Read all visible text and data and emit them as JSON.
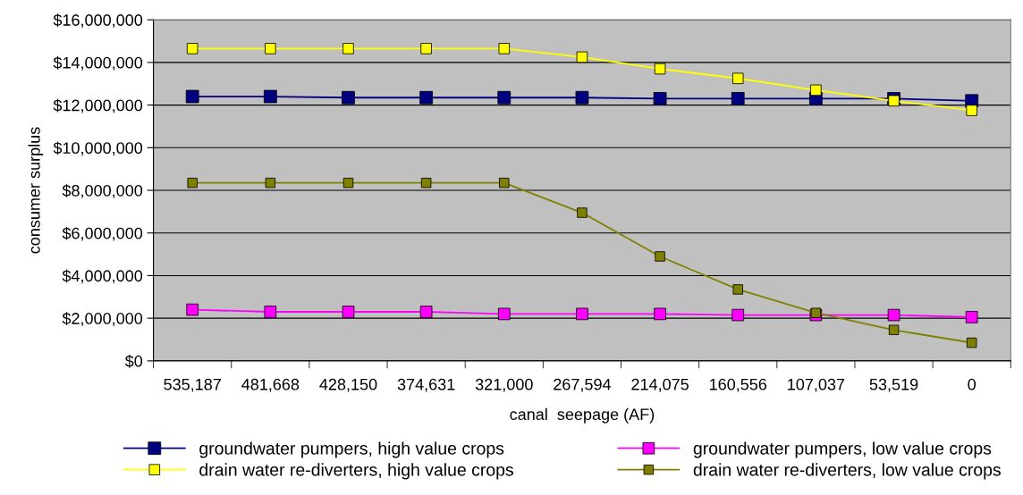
{
  "chart_data": {
    "type": "line",
    "xlabel": "canal  seepage (AF)",
    "ylabel": "consumer surplus",
    "categories": [
      "535,187",
      "481,668",
      "428,150",
      "374,631",
      "321,000",
      "267,594",
      "214,075",
      "160,556",
      "107,037",
      "53,519",
      "0"
    ],
    "ylim": [
      0,
      16000000
    ],
    "yticks": [
      {
        "value": 0,
        "label": "$0"
      },
      {
        "value": 2000000,
        "label": "$2,000,000"
      },
      {
        "value": 4000000,
        "label": "$4,000,000"
      },
      {
        "value": 6000000,
        "label": "$6,000,000"
      },
      {
        "value": 8000000,
        "label": "$8,000,000"
      },
      {
        "value": 10000000,
        "label": "$10,000,000"
      },
      {
        "value": 12000000,
        "label": "$12,000,000"
      },
      {
        "value": 14000000,
        "label": "$14,000,000"
      },
      {
        "value": 16000000,
        "label": "$16,000,000"
      }
    ],
    "grid": "y",
    "legend": "bottom",
    "marker": "square",
    "line_style": "solid",
    "series": [
      {
        "name": "groundwater pumpers, high value crops",
        "color": "#000080",
        "values": [
          12400000,
          12400000,
          12350000,
          12350000,
          12350000,
          12350000,
          12300000,
          12300000,
          12300000,
          12300000,
          12200000
        ]
      },
      {
        "name": "groundwater pumpers, low value crops",
        "color": "#ff00ff",
        "values": [
          2400000,
          2300000,
          2300000,
          2300000,
          2200000,
          2200000,
          2200000,
          2150000,
          2150000,
          2150000,
          2050000
        ]
      },
      {
        "name": "drain water re-diverters, high value crops",
        "color": "#ffff00",
        "values": [
          14650000,
          14650000,
          14650000,
          14650000,
          14650000,
          14250000,
          13700000,
          13250000,
          12700000,
          12200000,
          11750000
        ]
      },
      {
        "name": "drain water re-diverters, low value crops",
        "color": "#808000",
        "values": [
          8350000,
          8350000,
          8350000,
          8350000,
          8350000,
          6950000,
          4900000,
          3350000,
          2250000,
          1450000,
          850000
        ]
      }
    ]
  }
}
